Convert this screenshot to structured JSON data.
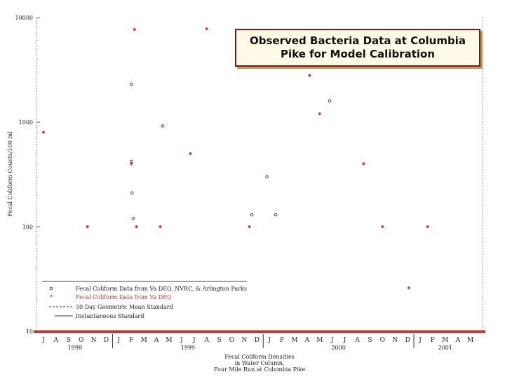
{
  "chart_data": {
    "type": "scatter",
    "title": "Observed Bacteria Data at Columbia Pike for Model Calibration",
    "y_scale": "log",
    "ylim": [
      10,
      10000
    ],
    "ylabel": "Fecal Coliform Counts/100 ml",
    "y_ticks": [
      "10",
      "100",
      "1000",
      "10000"
    ],
    "x_months": [
      "J",
      "A",
      "S",
      "O",
      "N",
      "D",
      "J",
      "F",
      "M",
      "A",
      "M",
      "J",
      "J",
      "A",
      "S",
      "O",
      "N",
      "D",
      "J",
      "F",
      "M",
      "A",
      "M",
      "J",
      "J",
      "A",
      "S",
      "O",
      "N",
      "D",
      "J",
      "F",
      "M",
      "A",
      "M"
    ],
    "x_years": [
      "1998",
      "1999",
      "2000",
      "2001"
    ],
    "xlabel": [
      "Fecal Coliform Densities",
      "in Water Column,",
      "Four Mile Run at Columbia Pike"
    ],
    "series": [
      {
        "name": "Fecal Coliform Data from Va DEQ, NVRC, & Arlington Parks",
        "color": "#3b3bb0",
        "marker": "circle",
        "points": [
          {
            "x": 7.0,
            "y": 2300
          },
          {
            "x": 7.0,
            "y": 420
          },
          {
            "x": 7.05,
            "y": 210
          },
          {
            "x": 7.15,
            "y": 120
          },
          {
            "x": 9.5,
            "y": 920
          },
          {
            "x": 16.6,
            "y": 130
          },
          {
            "x": 17.8,
            "y": 300
          },
          {
            "x": 18.5,
            "y": 130
          },
          {
            "x": 22.8,
            "y": 1600
          }
        ]
      },
      {
        "name": "Fecal Coliform Data from Va DEQ",
        "color": "#b03060",
        "marker": "asterisk",
        "points": [
          {
            "x": 0.0,
            "y": 800
          },
          {
            "x": 3.5,
            "y": 100
          },
          {
            "x": 7.25,
            "y": 7700
          },
          {
            "x": 7.0,
            "y": 400
          },
          {
            "x": 7.4,
            "y": 100
          },
          {
            "x": 9.3,
            "y": 100
          },
          {
            "x": 11.7,
            "y": 500
          },
          {
            "x": 13.0,
            "y": 7800
          },
          {
            "x": 16.4,
            "y": 100
          },
          {
            "x": 21.2,
            "y": 2800
          },
          {
            "x": 22.0,
            "y": 1200
          },
          {
            "x": 25.5,
            "y": 400
          },
          {
            "x": 27.0,
            "y": 100
          },
          {
            "x": 29.1,
            "y": 26
          },
          {
            "x": 30.6,
            "y": 100
          }
        ]
      }
    ],
    "legend": {
      "placement": "lower-left",
      "entries": [
        {
          "label": "Fecal Coliform Data from Va DEQ, NVRC, & Arlington Parks",
          "style": "circle"
        },
        {
          "label": "Fecal Coliform Data from Va DEQ",
          "style": "asterisk"
        },
        {
          "label": "30 Day Geometric Mean Standard",
          "style": "dashed"
        },
        {
          "label": "Instantaneous Standard",
          "style": "solid"
        }
      ]
    }
  }
}
